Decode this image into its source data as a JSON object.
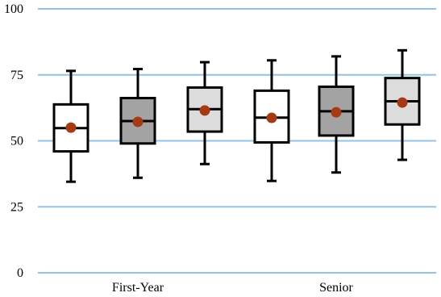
{
  "chart_data": {
    "type": "box",
    "title": "",
    "xlabel": "",
    "ylabel": "",
    "ylim": [
      0,
      100
    ],
    "yticks": [
      "0",
      "25",
      "50",
      "75",
      "100"
    ],
    "grid": true,
    "categories": [
      "First-Year",
      "Senior"
    ],
    "boxes_per_category": 3,
    "colors": {
      "gridline": "#8ec4ee",
      "box_fills": [
        "#ffffff",
        "#a3a3a3",
        "#dcdcdc"
      ],
      "outline": "#000000",
      "mean_marker": "#a83a12"
    },
    "boxes": [
      {
        "category": "First-Year",
        "fill_index": 0,
        "min": 34.5,
        "q1": 46,
        "median": 54.8,
        "q3": 63.8,
        "max": 76.5,
        "mean": 55
      },
      {
        "category": "First-Year",
        "fill_index": 1,
        "min": 36,
        "q1": 49,
        "median": 57.5,
        "q3": 66.2,
        "max": 77.2,
        "mean": 57.2
      },
      {
        "category": "First-Year",
        "fill_index": 2,
        "min": 41.2,
        "q1": 53.5,
        "median": 62,
        "q3": 70.2,
        "max": 79.8,
        "mean": 61.5
      },
      {
        "category": "Senior",
        "fill_index": 0,
        "min": 34.8,
        "q1": 49.4,
        "median": 58.8,
        "q3": 69,
        "max": 80.5,
        "mean": 58.7
      },
      {
        "category": "Senior",
        "fill_index": 1,
        "min": 38,
        "q1": 52,
        "median": 61.2,
        "q3": 70.5,
        "max": 82,
        "mean": 60.8
      },
      {
        "category": "Senior",
        "fill_index": 2,
        "min": 42.8,
        "q1": 56.2,
        "median": 65,
        "q3": 73.8,
        "max": 84.3,
        "mean": 64.5
      }
    ]
  }
}
